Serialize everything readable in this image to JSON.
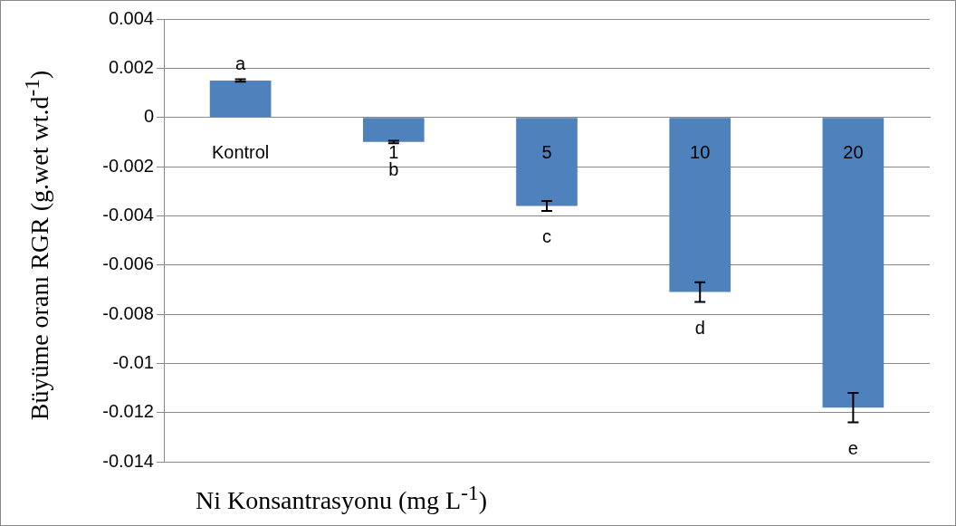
{
  "chart_data": {
    "type": "bar",
    "xlabel": "Ni Konsantrasyonu (mg L$^{-1}$)",
    "ylabel": "Büyüme oranı RGR (g.wet wt.d$^{-1}$)",
    "categories": [
      "Kontrol",
      "1",
      "5",
      "10",
      "20"
    ],
    "values": [
      0.0015,
      -0.001,
      -0.0036,
      -0.0071,
      -0.0118
    ],
    "errors": [
      5e-05,
      5e-05,
      0.0002,
      0.0004,
      0.0006
    ],
    "color": "#4f81bd",
    "ylim": [
      -0.014,
      0.004
    ],
    "yticks": [
      -0.014,
      -0.012,
      -0.01,
      -0.008,
      -0.006,
      -0.004,
      -0.002,
      0,
      0.002,
      0.004
    ],
    "grid": "y",
    "legend": false,
    "annotations": [
      "a",
      "b",
      "c",
      "d",
      "e"
    ]
  }
}
